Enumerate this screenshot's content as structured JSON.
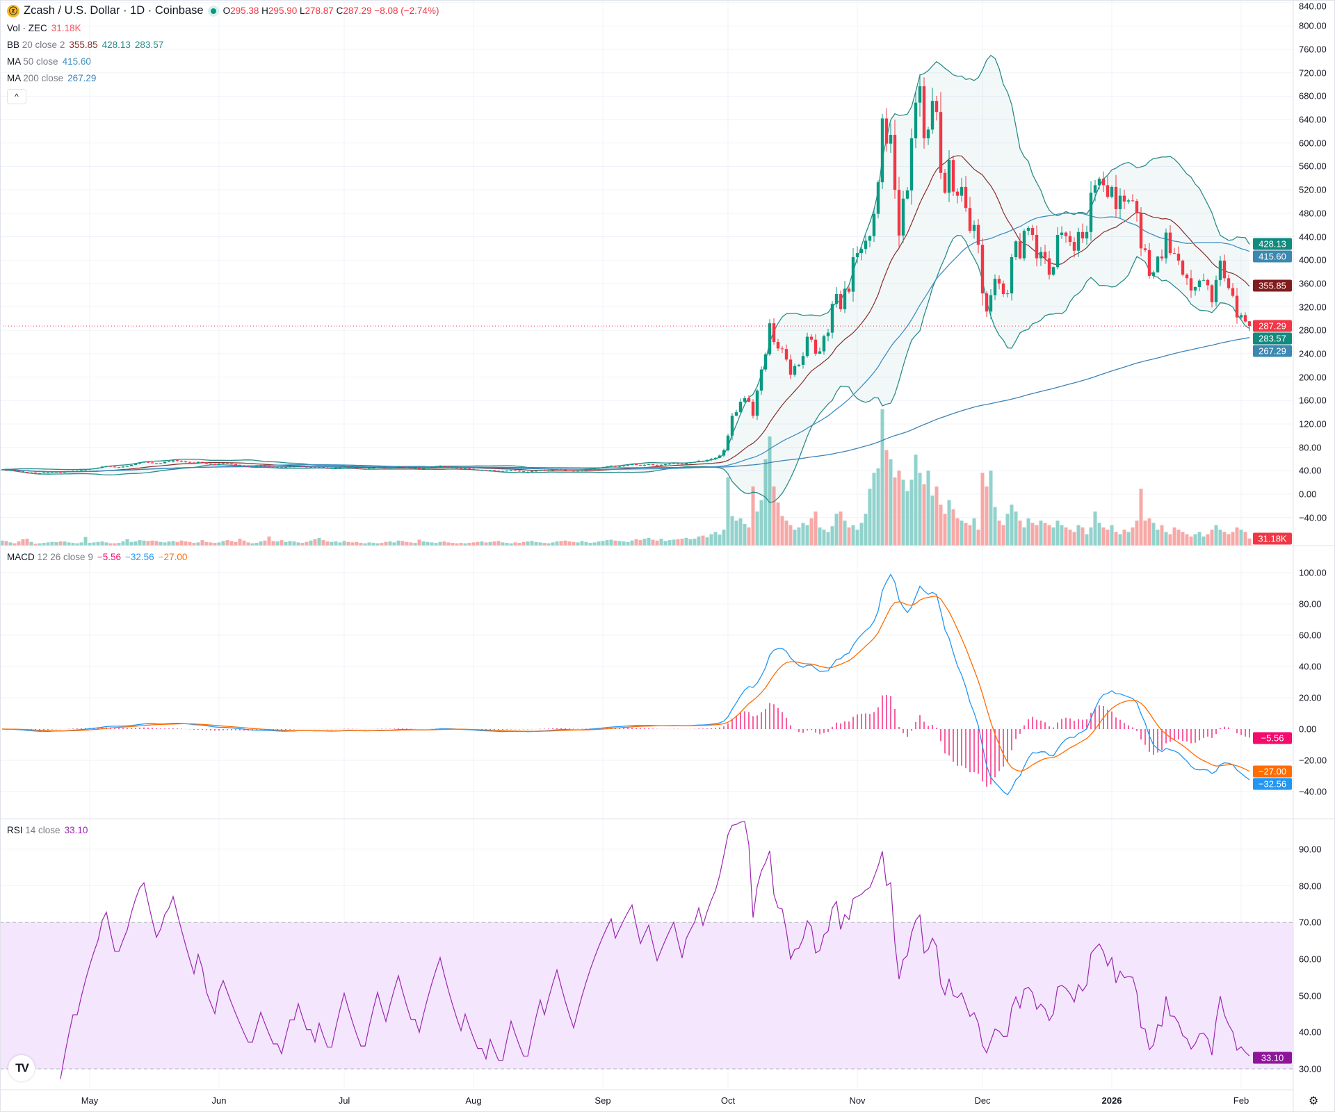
{
  "legend": {
    "symbol": "Zcash / U.S. Dollar · 1D · Coinbase",
    "ohlc": {
      "o_label": "O",
      "open": "295.38",
      "h_label": "H",
      "high": "295.90",
      "l_label": "L",
      "low": "278.87",
      "c_label": "C",
      "close": "287.29",
      "change": "−8.08 (−2.74%)"
    },
    "vol": {
      "label": "Vol · ZEC",
      "value": "31.18K"
    },
    "bb": {
      "name": "BB",
      "params": "20 close 2",
      "basis": "355.85",
      "upper": "428.13",
      "lower": "283.57"
    },
    "ma50": {
      "name": "MA",
      "params": "50 close",
      "value": "415.60"
    },
    "ma200": {
      "name": "MA",
      "params": "200 close",
      "value": "267.29"
    },
    "macd": {
      "name": "MACD",
      "params": "12 26 close 9",
      "hist": "−5.56",
      "macd": "−32.56",
      "signal": "−27.00"
    },
    "rsi": {
      "name": "RSI",
      "params": "14 close",
      "value": "33.10"
    },
    "collapse_icon": "chevron-up-icon"
  },
  "colors": {
    "up": "#089981",
    "down": "#f23645",
    "vol_up": "#92d2cc",
    "vol_down": "#f7a9a7",
    "bb_basis": "#8a2b2b",
    "bb_band": "#2a8c88",
    "ma50": "#3f8fc0",
    "ma200": "#3b84b8",
    "macd": "#2196f3",
    "signal": "#ff6d00",
    "hist": "#f50a6e",
    "rsi": "#9c27b0",
    "rsi_band": "#f3e6fd"
  },
  "badges": {
    "main": [
      {
        "text": "428.13",
        "color": "#138a7e"
      },
      {
        "text": "415.60",
        "color": "#3c88b0"
      },
      {
        "text": "355.85",
        "color": "#801c1c"
      },
      {
        "text": "287.29",
        "color": "#f23645"
      },
      {
        "text": "283.57",
        "color": "#138a7e"
      },
      {
        "text": "267.29",
        "color": "#3c88b0"
      }
    ],
    "volume": {
      "text": "31.18K",
      "color": "#f23645"
    },
    "macd": [
      {
        "text": "−5.56",
        "color": "#f50a6e"
      },
      {
        "text": "−27.00",
        "color": "#ff6d00"
      },
      {
        "text": "−32.56",
        "color": "#2196f3"
      }
    ],
    "rsi": {
      "text": "33.10",
      "color": "#8e1599"
    }
  },
  "chart_data": {
    "type": "candlestick",
    "period": "1D",
    "price_axis": {
      "ticks": [
        "840.00",
        "800.00",
        "760.00",
        "720.00",
        "680.00",
        "640.00",
        "600.00",
        "560.00",
        "520.00",
        "480.00",
        "440.00",
        "400.00",
        "360.00",
        "320.00",
        "280.00",
        "240.00",
        "200.00",
        "160.00",
        "120.00",
        "80.00",
        "40.00",
        "0.00",
        "−40.00"
      ]
    },
    "macd_axis": {
      "ticks": [
        "100.00",
        "80.00",
        "60.00",
        "40.00",
        "20.00",
        "0.00",
        "−20.00",
        "−40.00"
      ]
    },
    "rsi_axis": {
      "ticks": [
        "90.00",
        "80.00",
        "70.00",
        "60.00",
        "50.00",
        "40.00",
        "30.00"
      ],
      "band": [
        30,
        70
      ]
    },
    "time_axis": {
      "ticks": [
        {
          "label": "May",
          "date": "2025-05-01"
        },
        {
          "label": "Jun",
          "date": "2025-06-01"
        },
        {
          "label": "Jul",
          "date": "2025-07-01"
        },
        {
          "label": "Aug",
          "date": "2025-08-01"
        },
        {
          "label": "Sep",
          "date": "2025-09-01"
        },
        {
          "label": "Oct",
          "date": "2025-10-01"
        },
        {
          "label": "Nov",
          "date": "2025-11-01"
        },
        {
          "label": "Dec",
          "date": "2025-12-01"
        },
        {
          "label": "2026",
          "date": "2026-01-01",
          "bold": true
        },
        {
          "label": "Feb",
          "date": "2026-02-01"
        }
      ]
    },
    "close": [
      42,
      41,
      42,
      40,
      39,
      38,
      37,
      37,
      36,
      36,
      37,
      37,
      38,
      38,
      37,
      38,
      39,
      40,
      40,
      41,
      42,
      43,
      44,
      45,
      47,
      48,
      47,
      46,
      46,
      47,
      48,
      50,
      52,
      54,
      55,
      54,
      53,
      52,
      53,
      55,
      56,
      58,
      57,
      56,
      55,
      54,
      53,
      55,
      54,
      52,
      51,
      50,
      52,
      53,
      52,
      51,
      50,
      49,
      48,
      47,
      47,
      48,
      49,
      48,
      47,
      46,
      46,
      45,
      46,
      47,
      47,
      48,
      47,
      46,
      46,
      45,
      46,
      45,
      44,
      44,
      45,
      46,
      47,
      46,
      45,
      44,
      43,
      43,
      44,
      45,
      46,
      45,
      44,
      45,
      46,
      47,
      46,
      45,
      44,
      44,
      43,
      44,
      45,
      46,
      47,
      48,
      47,
      46,
      45,
      44,
      43,
      44,
      43,
      42,
      41,
      41,
      40,
      41,
      40,
      39,
      39,
      40,
      41,
      40,
      39,
      38,
      38,
      39,
      40,
      41,
      40,
      41,
      42,
      43,
      42,
      41,
      40,
      39,
      40,
      41,
      42,
      43,
      44,
      45,
      46,
      47,
      48,
      47,
      48,
      49,
      50,
      51,
      50,
      49,
      50,
      51,
      50,
      49,
      50,
      51,
      52,
      53,
      52,
      51,
      53,
      54,
      55,
      57,
      56,
      58,
      60,
      62,
      66,
      75,
      100,
      134,
      140,
      158,
      164,
      158,
      134,
      177,
      213,
      239,
      292,
      260,
      249,
      248,
      230,
      204,
      219,
      221,
      236,
      269,
      264,
      240,
      244,
      270,
      276,
      325,
      342,
      316,
      351,
      346,
      405,
      412,
      419,
      433,
      441,
      479,
      533,
      642,
      599,
      614,
      520,
      442,
      505,
      519,
      608,
      669,
      697,
      608,
      623,
      672,
      653,
      549,
      515,
      571,
      517,
      510,
      525,
      489,
      450,
      460,
      426,
      343,
      312,
      340,
      368,
      360,
      342,
      343,
      405,
      432,
      403,
      450,
      455,
      443,
      403,
      414,
      403,
      375,
      388,
      443,
      447,
      441,
      431,
      416,
      448,
      437,
      448,
      515,
      528,
      539,
      528,
      508,
      525,
      487,
      510,
      500,
      502,
      501,
      480,
      420,
      417,
      373,
      379,
      406,
      403,
      447,
      412,
      411,
      399,
      375,
      369,
      348,
      354,
      365,
      366,
      357,
      328,
      366,
      399,
      369,
      352,
      339,
      302,
      306,
      295,
      287.29
    ],
    "volume_k": [
      22,
      20,
      14,
      10,
      18,
      28,
      30,
      16,
      8,
      10,
      12,
      14,
      16,
      15,
      18,
      18,
      14,
      12,
      10,
      14,
      38,
      12,
      14,
      16,
      18,
      14,
      10,
      10,
      12,
      18,
      28,
      16,
      18,
      24,
      22,
      20,
      22,
      20,
      16,
      14,
      18,
      20,
      16,
      22,
      18,
      16,
      12,
      14,
      24,
      16,
      14,
      12,
      14,
      20,
      24,
      20,
      16,
      30,
      22,
      14,
      10,
      12,
      18,
      22,
      40,
      20,
      18,
      24,
      16,
      20,
      18,
      14,
      12,
      16,
      22,
      28,
      34,
      24,
      18,
      16,
      18,
      14,
      20,
      16,
      14,
      16,
      12,
      10,
      14,
      12,
      10,
      12,
      16,
      18,
      14,
      22,
      20,
      16,
      14,
      12,
      26,
      18,
      16,
      14,
      12,
      16,
      18,
      14,
      12,
      10,
      12,
      10,
      12,
      14,
      16,
      18,
      14,
      16,
      18,
      20,
      14,
      12,
      10,
      14,
      12,
      16,
      18,
      20,
      16,
      14,
      12,
      10,
      14,
      18,
      20,
      22,
      18,
      16,
      14,
      20,
      16,
      12,
      14,
      18,
      20,
      24,
      26,
      22,
      20,
      18,
      16,
      22,
      28,
      24,
      30,
      34,
      26,
      22,
      30,
      20,
      24,
      26,
      28,
      30,
      34,
      28,
      30,
      40,
      44,
      36,
      50,
      60,
      48,
      70,
      300,
      130,
      110,
      120,
      95,
      80,
      260,
      150,
      200,
      380,
      480,
      260,
      190,
      130,
      110,
      90,
      70,
      80,
      100,
      90,
      120,
      150,
      80,
      70,
      60,
      85,
      140,
      150,
      110,
      80,
      90,
      70,
      100,
      140,
      250,
      320,
      340,
      600,
      420,
      380,
      300,
      330,
      290,
      240,
      290,
      400,
      320,
      270,
      330,
      220,
      260,
      180,
      140,
      200,
      160,
      120,
      110,
      100,
      90,
      120,
      70,
      320,
      260,
      330,
      170,
      110,
      90,
      140,
      180,
      150,
      110,
      80,
      120,
      100,
      90,
      110,
      100,
      90,
      80,
      110,
      90,
      80,
      70,
      60,
      90,
      80,
      50,
      80,
      150,
      100,
      80,
      70,
      90,
      60,
      50,
      70,
      60,
      80,
      110,
      250,
      110,
      120,
      100,
      70,
      90,
      60,
      50,
      80,
      70,
      60,
      50,
      40,
      50,
      60,
      40,
      50,
      70,
      90,
      70,
      60,
      50,
      60,
      80,
      70,
      60,
      31.18
    ]
  }
}
